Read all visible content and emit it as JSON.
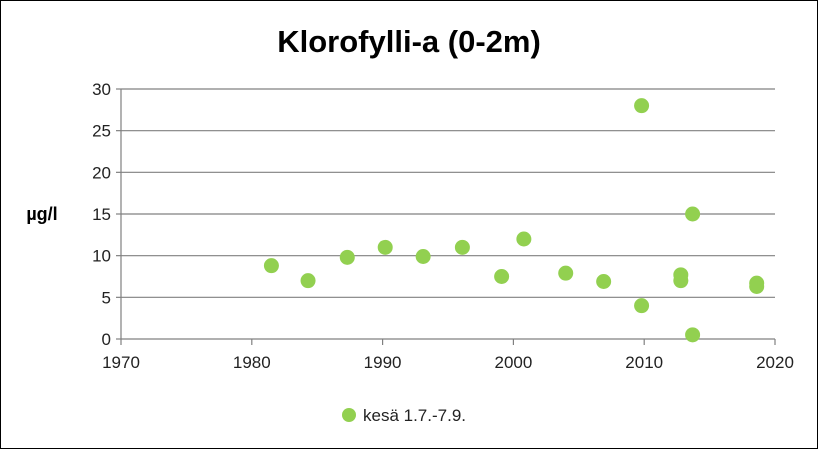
{
  "chart_data": {
    "type": "scatter",
    "title": "Klorofylli-a (0-2m)",
    "xlabel": "",
    "ylabel": "µg/l",
    "xlim": [
      1970,
      2020
    ],
    "ylim": [
      0,
      30
    ],
    "x_ticks": [
      1970,
      1980,
      1990,
      2000,
      2010,
      2020
    ],
    "y_ticks": [
      0,
      5,
      10,
      15,
      20,
      25,
      30
    ],
    "grid": "horizontal",
    "legend_position": "bottom",
    "series": [
      {
        "name": "kesä 1.7.-7.9.",
        "color": "#92d050",
        "points": [
          {
            "x": 1981.5,
            "y": 8.8
          },
          {
            "x": 1984.3,
            "y": 7.0
          },
          {
            "x": 1987.3,
            "y": 9.8
          },
          {
            "x": 1990.2,
            "y": 11.0
          },
          {
            "x": 1993.1,
            "y": 9.9
          },
          {
            "x": 1996.1,
            "y": 11.0
          },
          {
            "x": 1999.1,
            "y": 7.5
          },
          {
            "x": 2000.8,
            "y": 12.0
          },
          {
            "x": 2004.0,
            "y": 7.9
          },
          {
            "x": 2006.9,
            "y": 6.9
          },
          {
            "x": 2009.8,
            "y": 28.0
          },
          {
            "x": 2009.8,
            "y": 4.0
          },
          {
            "x": 2012.8,
            "y": 7.7
          },
          {
            "x": 2012.8,
            "y": 7.0
          },
          {
            "x": 2013.7,
            "y": 15.0
          },
          {
            "x": 2013.7,
            "y": 0.5
          },
          {
            "x": 2018.6,
            "y": 6.7
          },
          {
            "x": 2018.6,
            "y": 6.3
          }
        ]
      }
    ]
  }
}
